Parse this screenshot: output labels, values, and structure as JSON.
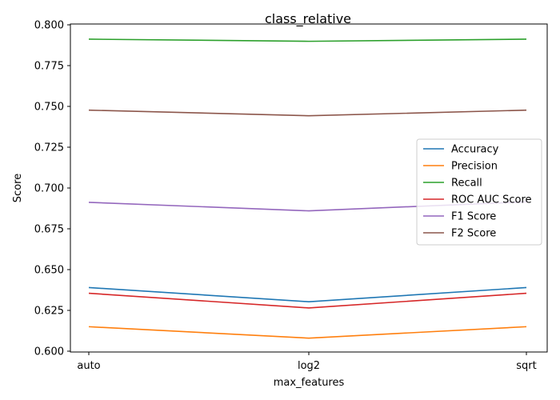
{
  "chart_data": {
    "type": "line",
    "title": "class_relative",
    "xlabel": "max_features",
    "ylabel": "Score",
    "categories": [
      "auto",
      "log2",
      "sqrt"
    ],
    "ylim": [
      0.5995,
      0.8005
    ],
    "yticks": [
      0.6,
      0.625,
      0.65,
      0.675,
      0.7,
      0.725,
      0.75,
      0.775,
      0.8
    ],
    "ytick_labels": [
      "0.600",
      "0.625",
      "0.650",
      "0.675",
      "0.700",
      "0.725",
      "0.750",
      "0.775",
      "0.800"
    ],
    "grid": false,
    "legend_position": "center-right",
    "series": [
      {
        "name": "Accuracy",
        "color": "#1f77b4",
        "values": [
          0.639,
          0.6303,
          0.639
        ]
      },
      {
        "name": "Precision",
        "color": "#ff7f0e",
        "values": [
          0.615,
          0.608,
          0.615
        ]
      },
      {
        "name": "Recall",
        "color": "#2ca02c",
        "values": [
          0.7912,
          0.7899,
          0.7912
        ]
      },
      {
        "name": "ROC AUC Score",
        "color": "#d62728",
        "values": [
          0.6355,
          0.6265,
          0.6355
        ]
      },
      {
        "name": "F1 Score",
        "color": "#9467bd",
        "values": [
          0.6912,
          0.686,
          0.6915
        ]
      },
      {
        "name": "F2 Score",
        "color": "#8c564b",
        "values": [
          0.7477,
          0.7443,
          0.7477
        ]
      }
    ]
  }
}
